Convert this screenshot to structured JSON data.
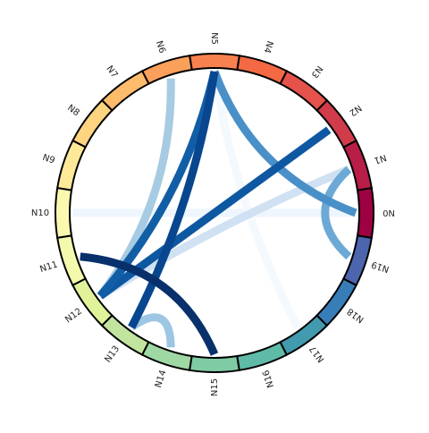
{
  "nodes": [
    {
      "label": "N0",
      "color": "#9e0142"
    },
    {
      "label": "N1",
      "color": "#b81e48"
    },
    {
      "label": "N2",
      "color": "#d13c4b"
    },
    {
      "label": "N3",
      "color": "#e4524b"
    },
    {
      "label": "N4",
      "color": "#f26943"
    },
    {
      "label": "N5",
      "color": "#f78250"
    },
    {
      "label": "N6",
      "color": "#fba05b"
    },
    {
      "label": "N7",
      "color": "#fdbb6c"
    },
    {
      "label": "N8",
      "color": "#fed481"
    },
    {
      "label": "N9",
      "color": "#fee999"
    },
    {
      "label": "N10",
      "color": "#fbf8b0"
    },
    {
      "label": "N11",
      "color": "#f3faad"
    },
    {
      "label": "N12",
      "color": "#e0f39b"
    },
    {
      "label": "N13",
      "color": "#c1e59f"
    },
    {
      "label": "N14",
      "color": "#9fd8a3"
    },
    {
      "label": "N15",
      "color": "#7fcba4"
    },
    {
      "label": "N16",
      "color": "#5fbaa8"
    },
    {
      "label": "N17",
      "color": "#429aae"
    },
    {
      "label": "N18",
      "color": "#377eb8"
    },
    {
      "label": "N19",
      "color": "#4c65ad"
    }
  ],
  "edges": [
    {
      "source": 10,
      "target": 0,
      "color": "#eef5fc",
      "width": 9
    },
    {
      "source": 5,
      "target": 17,
      "color": "#f4f9fe",
      "width": 9
    },
    {
      "source": 1,
      "target": 12,
      "color": "#cfe1f2",
      "width": 9
    },
    {
      "source": 6,
      "target": 12,
      "color": "#a6cbe3",
      "width": 9
    },
    {
      "source": 13,
      "target": 14,
      "color": "#9cc6e2",
      "width": 9
    },
    {
      "source": 1,
      "target": 19,
      "color": "#6ca9d6",
      "width": 9
    },
    {
      "source": 5,
      "target": 0,
      "color": "#4a90c8",
      "width": 9
    },
    {
      "source": 2,
      "target": 12,
      "color": "#0e58a2",
      "width": 9
    },
    {
      "source": 5,
      "target": 12,
      "color": "#125ea6",
      "width": 9
    },
    {
      "source": 5,
      "target": 13,
      "color": "#08468f",
      "width": 9
    },
    {
      "source": 11,
      "target": 15,
      "color": "#08306b",
      "width": 9
    }
  ]
}
